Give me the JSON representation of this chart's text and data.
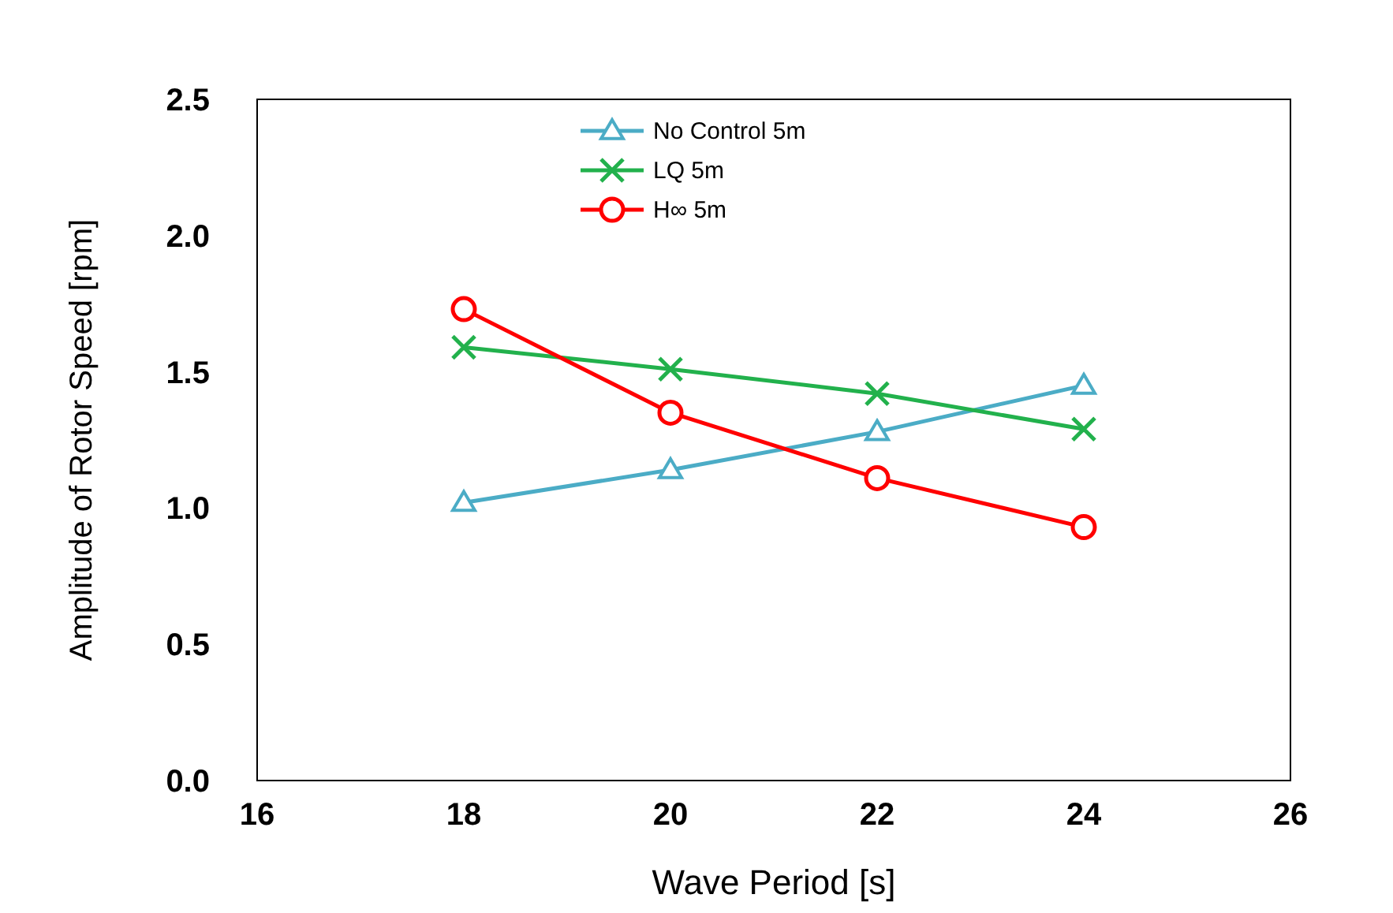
{
  "chart_data": {
    "type": "line",
    "xlabel": "Wave Period [s]",
    "ylabel": "Amplitude of Rotor Speed [rpm]",
    "x": [
      18,
      20,
      22,
      24
    ],
    "series": [
      {
        "name": "No Control 5m",
        "color": "#4bacc6",
        "values": [
          1.02,
          1.14,
          1.28,
          1.45
        ],
        "marker": "triangle"
      },
      {
        "name": "LQ 5m",
        "color": "#22b14c",
        "values": [
          1.59,
          1.51,
          1.42,
          1.29
        ],
        "marker": "cross"
      },
      {
        "name": "H∞ 5m",
        "color": "#ff0000",
        "values": [
          1.73,
          1.35,
          1.11,
          0.93
        ],
        "marker": "circle"
      }
    ],
    "xlim": [
      16,
      26
    ],
    "xticks": [
      16,
      18,
      20,
      22,
      24,
      26
    ],
    "ylim": [
      0,
      2.5
    ],
    "yticks": [
      {
        "value": 0,
        "label": "0.0"
      },
      {
        "value": 0.5,
        "label": "0.5"
      },
      {
        "value": 1,
        "label": "1.0"
      },
      {
        "value": 1.5,
        "label": "1.5"
      },
      {
        "value": 2,
        "label": "2.0"
      },
      {
        "value": 2.5,
        "label": "2.5"
      }
    ],
    "grid": false,
    "legend": "top",
    "line_style": "solid"
  }
}
